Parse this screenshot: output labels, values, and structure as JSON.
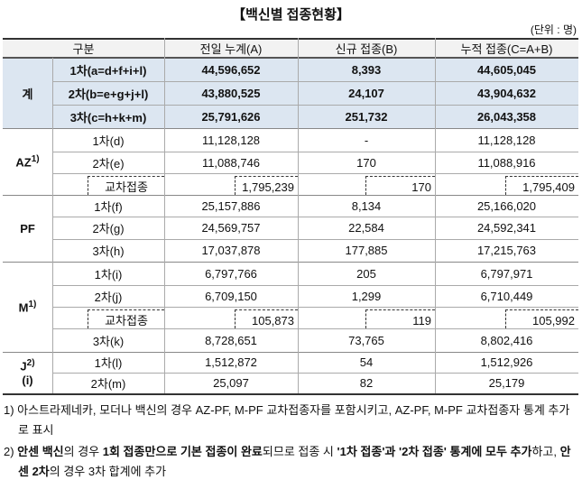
{
  "title": "【백신별 접종현황】",
  "unit": "(단위 : 명)",
  "table": {
    "header": [
      "구분",
      "전일 누계(A)",
      "신규 접종(B)",
      "누적 접종(C=A+B)"
    ],
    "groups": [
      {
        "label": "계",
        "rows": [
          {
            "label": "1차(a=d+f+i+l)",
            "cells": [
              "44,596,652",
              "8,393",
              "44,605,045"
            ]
          },
          {
            "label": "2차(b=e+g+j+l)",
            "cells": [
              "43,880,525",
              "24,107",
              "43,904,632"
            ]
          },
          {
            "label": "3차(c=h+k+m)",
            "cells": [
              "25,791,626",
              "251,732",
              "26,043,358"
            ]
          }
        ]
      },
      {
        "label": "AZ",
        "sup": "1)",
        "rows": [
          {
            "label": "1차(d)",
            "cells": [
              "11,128,128",
              "-",
              "11,128,128"
            ]
          },
          {
            "label": "2차(e)",
            "cells": [
              "11,088,746",
              "170",
              "11,088,916"
            ]
          },
          {
            "label": "교차접종",
            "cross": true,
            "cells": [
              "1,795,239",
              "170",
              "1,795,409"
            ]
          }
        ]
      },
      {
        "label": "PF",
        "rows": [
          {
            "label": "1차(f)",
            "cells": [
              "25,157,886",
              "8,134",
              "25,166,020"
            ]
          },
          {
            "label": "2차(g)",
            "cells": [
              "24,569,757",
              "22,584",
              "24,592,341"
            ]
          },
          {
            "label": "3차(h)",
            "cells": [
              "17,037,878",
              "177,885",
              "17,215,763"
            ]
          }
        ]
      },
      {
        "label": "M",
        "sup": "1)",
        "rows": [
          {
            "label": "1차(i)",
            "cells": [
              "6,797,766",
              "205",
              "6,797,971"
            ]
          },
          {
            "label": "2차(j)",
            "cells": [
              "6,709,150",
              "1,299",
              "6,710,449"
            ]
          },
          {
            "label": "교차접종",
            "cross": true,
            "cells": [
              "105,873",
              "119",
              "105,992"
            ]
          },
          {
            "label": "3차(k)",
            "cells": [
              "8,728,651",
              "73,765",
              "8,802,416"
            ]
          }
        ]
      },
      {
        "label": "J",
        "sup": "2)",
        "label2": "(i)",
        "rows": [
          {
            "label": "1차(l)",
            "cells": [
              "1,512,872",
              "54",
              "1,512,926"
            ]
          },
          {
            "label": "2차(m)",
            "cells": [
              "25,097",
              "82",
              "25,179"
            ]
          }
        ]
      }
    ]
  },
  "footnotes": [
    {
      "segments": [
        {
          "text": "1) 아스트라제네카, 모더나 백신의 경우 AZ-PF, M-PF 교차접종자를 포함시키고, AZ-PF, M-PF 교차접종자 통계 추가로 표시",
          "bold": false
        }
      ]
    },
    {
      "segments": [
        {
          "text": "2) ",
          "bold": false
        },
        {
          "text": "안센 백신",
          "bold": true
        },
        {
          "text": "의 경우 ",
          "bold": false
        },
        {
          "text": "1회 접종만으로 기본 접종이 완료",
          "bold": true
        },
        {
          "text": "되므로 접종 시 ",
          "bold": false
        },
        {
          "text": "'1차 접종'과 '2차 접종' 통계에 모두 추가",
          "bold": true
        },
        {
          "text": "하고, ",
          "bold": false
        },
        {
          "text": "안센 2차",
          "bold": true
        },
        {
          "text": "의 경우 3차 합계에 추가",
          "bold": false
        }
      ]
    }
  ]
}
